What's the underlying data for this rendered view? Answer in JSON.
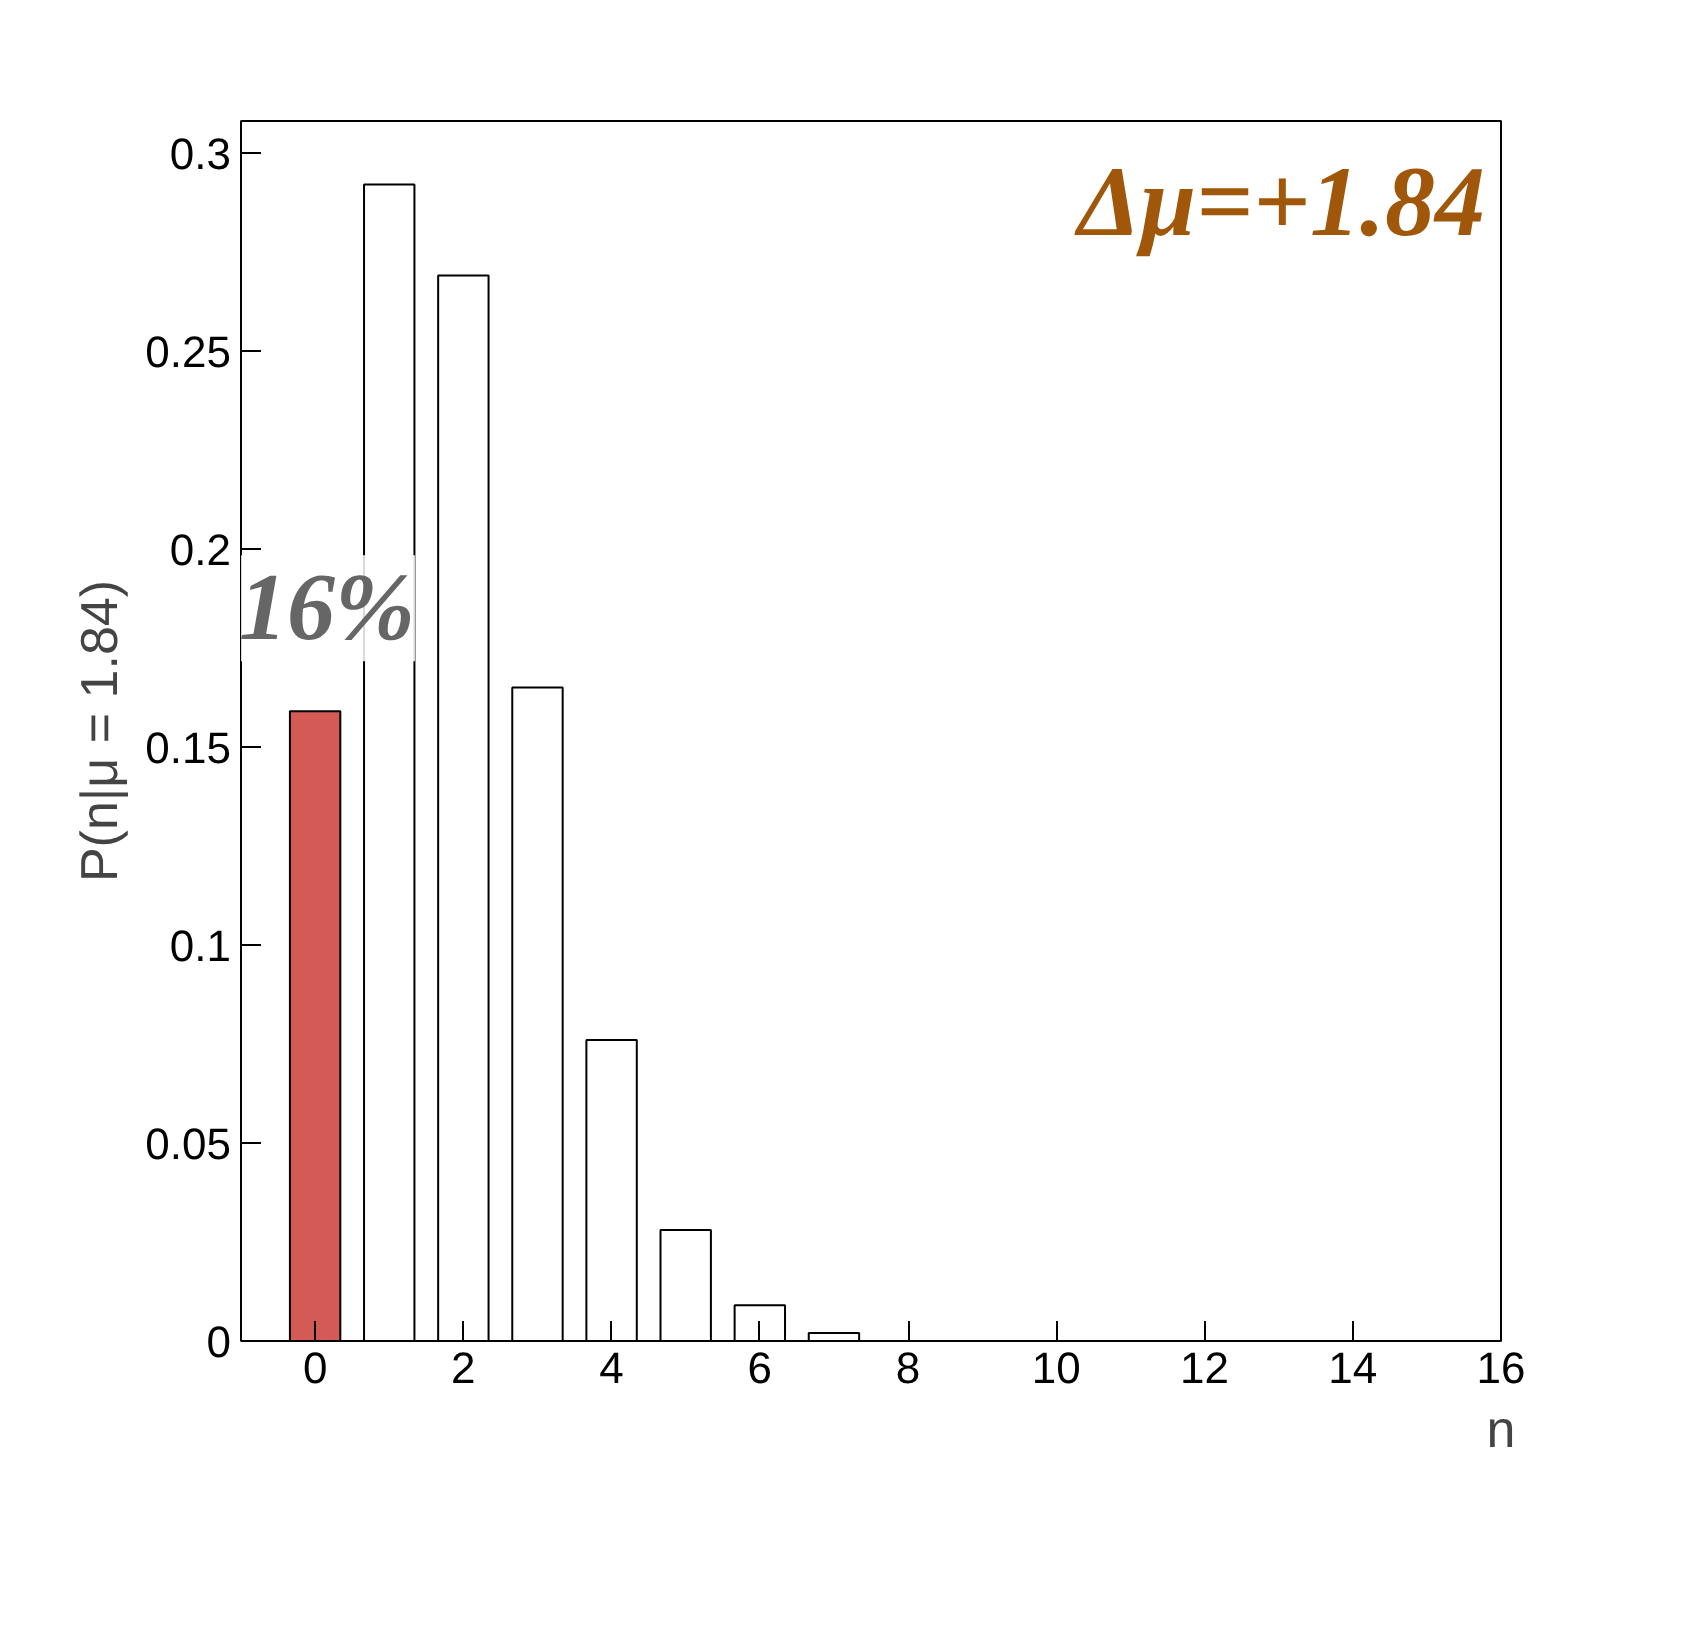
{
  "chart_data": {
    "type": "bar",
    "xlabel": "n",
    "ylabel": "P(n|μ = 1.84)",
    "x": [
      0,
      1,
      2,
      3,
      4,
      5,
      6,
      7
    ],
    "values": [
      0.159,
      0.292,
      0.269,
      0.165,
      0.076,
      0.028,
      0.009,
      0.002
    ],
    "colors": [
      "#d45a55",
      "#ffffff",
      "#ffffff",
      "#ffffff",
      "#ffffff",
      "#ffffff",
      "#ffffff",
      "#ffffff"
    ],
    "xlim": [
      -1,
      16
    ],
    "xticks": [
      0,
      2,
      4,
      6,
      8,
      10,
      12,
      14,
      16
    ],
    "ylim": [
      0,
      0.308
    ],
    "yticks": [
      0,
      0.05,
      0.1,
      0.15,
      0.2,
      0.25,
      0.3
    ],
    "grid": false,
    "annotations": [
      "Δμ=+1.84",
      {
        "text": "16%",
        "x": 0,
        "y": 0.159
      }
    ]
  }
}
